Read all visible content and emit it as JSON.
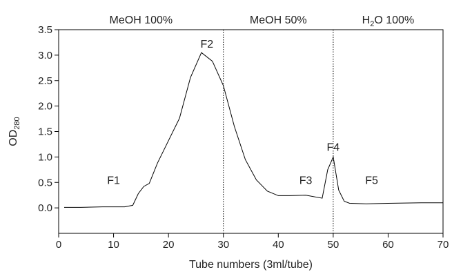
{
  "chart_data": {
    "type": "line",
    "title": "",
    "xlabel": "Tube numbers (3ml/tube)",
    "ylabel_main": "OD",
    "ylabel_sub": "280",
    "xlim": [
      0,
      70
    ],
    "ylim": [
      -0.5,
      3.5
    ],
    "xticks": [
      0,
      10,
      20,
      30,
      40,
      50,
      60,
      70
    ],
    "yticks": [
      0.0,
      0.5,
      1.0,
      1.5,
      2.0,
      2.5,
      3.0,
      3.5
    ],
    "xtick_labels": [
      "0",
      "10",
      "20",
      "30",
      "40",
      "50",
      "60",
      "70"
    ],
    "ytick_labels": [
      "0.0",
      "0.5",
      "1.0",
      "1.5",
      "2.0",
      "2.5",
      "3.0",
      "3.5"
    ],
    "grid": false,
    "legend": "none",
    "series": [
      {
        "x": [
          1,
          4,
          8,
          12,
          13.5,
          14.5,
          15.5,
          16.5,
          18,
          20,
          22,
          24,
          26,
          28,
          30,
          32,
          34,
          36,
          38,
          40,
          42,
          45,
          48,
          49,
          50,
          51,
          52,
          53,
          56,
          60,
          66,
          70
        ],
        "values": [
          0.01,
          0.01,
          0.02,
          0.02,
          0.05,
          0.28,
          0.42,
          0.48,
          0.88,
          1.32,
          1.76,
          2.56,
          3.05,
          2.88,
          2.4,
          1.6,
          0.95,
          0.55,
          0.33,
          0.24,
          0.24,
          0.25,
          0.19,
          0.75,
          1.0,
          0.35,
          0.13,
          0.09,
          0.08,
          0.09,
          0.1,
          0.1
        ]
      }
    ],
    "dividers": [
      30,
      50
    ],
    "regions": [
      {
        "label": "MeOH 100%",
        "center_x": 15
      },
      {
        "label": "MeOH 50%",
        "center_x": 40
      },
      {
        "label_main": "H",
        "label_sub": "2",
        "label_rest": "O 100%",
        "center_x": 60
      }
    ],
    "peaks": [
      {
        "label": "F1",
        "x": 10,
        "y": 0.55
      },
      {
        "label": "F2",
        "x": 27,
        "y": 3.23
      },
      {
        "label": "F3",
        "x": 45,
        "y": 0.55
      },
      {
        "label": "F4",
        "x": 50,
        "y": 1.2
      },
      {
        "label": "F5",
        "x": 57,
        "y": 0.55
      }
    ]
  }
}
